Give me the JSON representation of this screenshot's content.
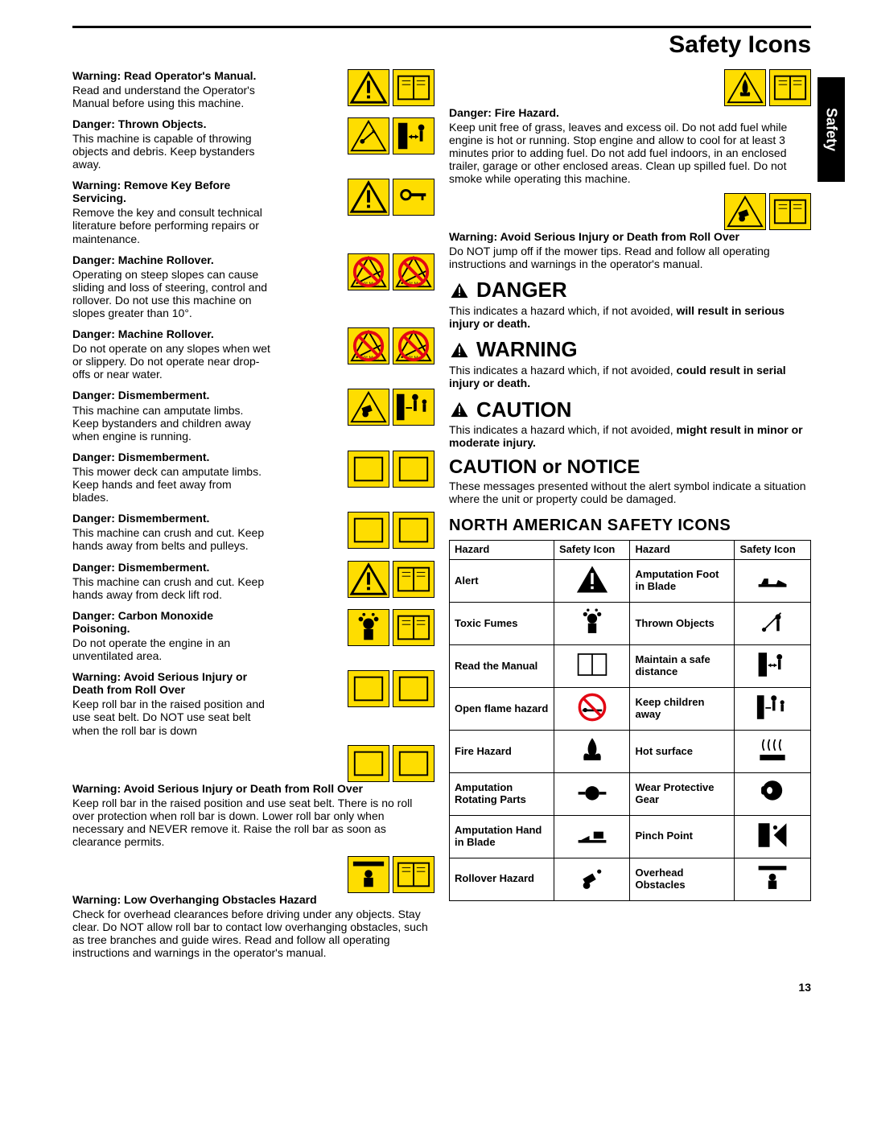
{
  "colors": {
    "yellow": "#fedd00",
    "black": "#000000",
    "red": "#e30613",
    "white": "#ffffff"
  },
  "header": {
    "title": "Safety Icons",
    "side_tab": "Safety"
  },
  "page_number": "13",
  "left_items": [
    {
      "head": "Warning: Read Operator's Manual.",
      "body": "Read and understand the Operator's Manual before using this machine.",
      "icons": [
        "alert",
        "manual"
      ]
    },
    {
      "head": "Danger: Thrown Objects.",
      "body": "This machine is capable of throwing objects and debris.  Keep bystanders away.",
      "icons": [
        "thrown",
        "distance"
      ]
    },
    {
      "head": "Warning: Remove Key Before Servicing.",
      "body": "Remove the key and consult technical literature before performing repairs or maintenance.",
      "icons": [
        "alert",
        "key"
      ]
    },
    {
      "head": "Danger: Machine Rollover.",
      "body": "Operating on steep slopes can cause sliding and loss of steering, control and rollover.  Do not use this machine on slopes greater than 10°.",
      "icons": [
        "slope-no",
        "slope-no"
      ]
    },
    {
      "head": "Danger: Machine Rollover.",
      "body": "Do not operate on any slopes when wet or slippery.  Do not operate near drop-offs or near water.",
      "icons": [
        "dropoff-no",
        "dropoff-no"
      ]
    },
    {
      "head": "Danger: Dismemberment.",
      "body": "This machine can amputate limbs. Keep bystanders and children away when engine is running.",
      "icons": [
        "mower",
        "children"
      ]
    },
    {
      "head": "Danger: Dismemberment.",
      "body": "This mower deck can amputate limbs.  Keep hands and feet away from blades.",
      "icons": [
        "blade",
        "no-hand"
      ]
    },
    {
      "head": "Danger: Dismemberment.",
      "body": "This machine can crush and cut. Keep hands away from belts and pulleys.",
      "icons": [
        "belt",
        "no-hand"
      ]
    },
    {
      "head": "Danger: Dismemberment.",
      "body": "This machine can crush and cut. Keep hands away from deck lift rod.",
      "icons": [
        "lift",
        "manual"
      ]
    },
    {
      "head": "Danger: Carbon Monoxide Poisoning.",
      "body": "Do not operate the engine in an unventilated area.",
      "icons": [
        "fumes",
        "manual"
      ]
    },
    {
      "head": "Warning: Avoid Serious Injury or Death from Roll Over",
      "body": "Keep roll bar in the raised position and use seat belt.  Do NOT use seat belt when the roll bar is down",
      "icons": [
        "rollbar",
        "rollbar2"
      ]
    },
    {
      "head": "Warning: Avoid Serious Injury or Death from Roll Over",
      "body": "Keep roll bar in the raised position and use seat belt.  There is no roll over protection when roll bar is down.  Lower roll bar only when necessary and NEVER remove it.  Raise the roll bar as soon as clearance permits.",
      "icons": [
        "rollbar",
        "rollbar2"
      ],
      "wide": true
    },
    {
      "head": "Warning: Low Overhanging Obstacles Hazard",
      "body": "Check for overhead clearances before driving under any objects. Stay clear.  Do NOT allow roll bar to contact low overhanging obstacles, such as tree branches and guide wires.  Read and follow all operating instructions and warnings in the operator's manual.",
      "icons": [
        "overhead",
        "manual"
      ],
      "wide": true
    }
  ],
  "right_items": [
    {
      "head": "Danger: Fire Hazard.",
      "body": "Keep unit free of grass, leaves and excess oil.  Do not add fuel while engine is hot or running.  Stop engine and allow to cool for at least 3 minutes prior to adding fuel.  Do not add fuel indoors, in an enclosed trailer, garage or other enclosed areas.  Clean up spilled fuel.  Do not smoke while operating this machine.",
      "icons": [
        "fire",
        "manual"
      ],
      "wide": true
    },
    {
      "head": "Warning: Avoid Serious Injury or Death from Roll Over",
      "body": "Do NOT jump off if the mower tips. Read and follow all operating instructions and warnings in the operator's manual.",
      "icons": [
        "rollover",
        "manual"
      ],
      "wide": true
    }
  ],
  "hazard_levels": [
    {
      "word": "DANGER",
      "body_pre": "This indicates a hazard which, if not avoided, ",
      "body_bold": "will result in serious injury or death."
    },
    {
      "word": "WARNING",
      "body_pre": "This indicates a hazard which, if not avoided, ",
      "body_bold": "could result in serial injury or death."
    },
    {
      "word": "CAUTION",
      "body_pre": "This indicates a hazard which, if not avoided, ",
      "body_bold": "might result in minor or moderate injury."
    }
  ],
  "caution_notice": {
    "title": "CAUTION or NOTICE",
    "body": "These messages presented without the alert symbol indicate a situation where the unit or property could be damaged."
  },
  "na_section": {
    "title": "NORTH AMERICAN SAFETY ICONS",
    "headers": [
      "Hazard",
      "Safety Icon",
      "Hazard",
      "Safety Icon"
    ],
    "rows": [
      [
        "Alert",
        "alert-tri",
        "Amputation Foot in Blade",
        "foot-blade"
      ],
      [
        "Toxic Fumes",
        "fumes-ico",
        "Thrown Objects",
        "thrown-ico"
      ],
      [
        "Read the Manual",
        "manual-ico",
        "Maintain a safe distance",
        "distance-ico"
      ],
      [
        "Open flame hazard",
        "noflame",
        "Keep children away",
        "children-ico"
      ],
      [
        "Fire Hazard",
        "fire-ico",
        "Hot surface",
        "hot-ico"
      ],
      [
        "Amputation Rotating Parts",
        "rotating-ico",
        "Wear Protective Gear",
        "ppe-ico"
      ],
      [
        "Amputation Hand in Blade",
        "hand-blade",
        "Pinch Point",
        "pinch-ico"
      ],
      [
        "Rollover Hazard",
        "rollover-ico",
        "Overhead Obstacles",
        "overhead-ico"
      ]
    ]
  }
}
